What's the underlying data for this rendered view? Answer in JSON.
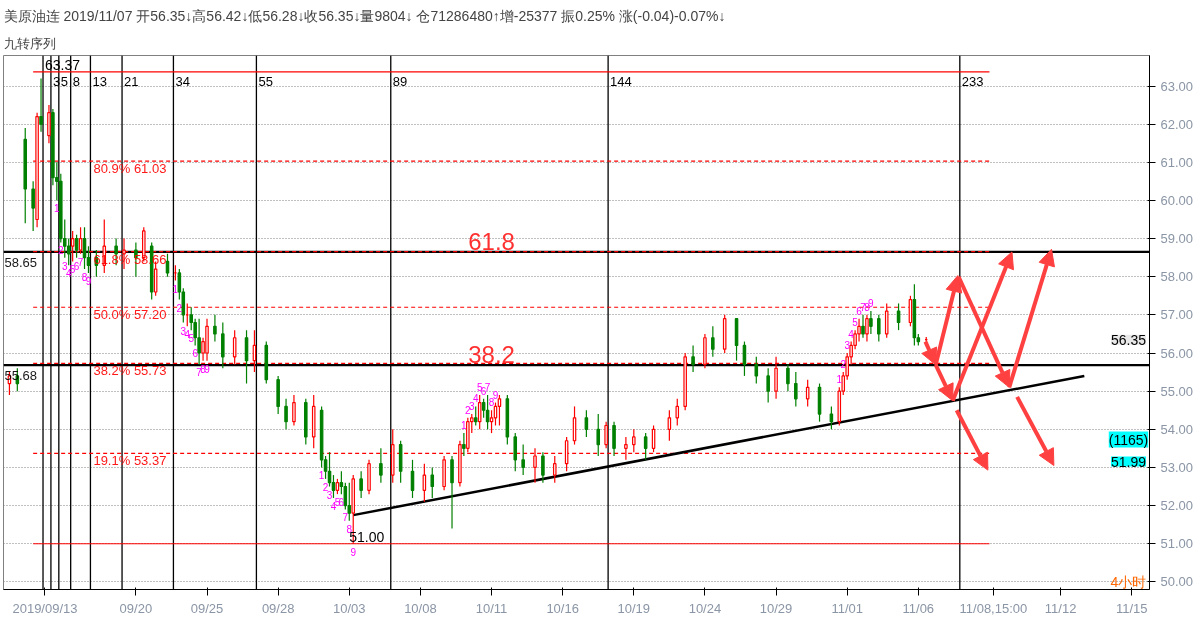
{
  "chart_data": {
    "type": "candlestick",
    "title": "美原油连 2019/11/07 开56.35↓高56.42↓低56.28↓收56.35↓量9804↓ 仓71286480↑增-25377 振0.25% 涨(-0.04)-0.07%↓",
    "subtitle": "九转序列",
    "categories": [
      null,
      null,
      null,
      null,
      null,
      null,
      null,
      null,
      null,
      null,
      "2019/09/13",
      null,
      null,
      null,
      null,
      null,
      null,
      null,
      null,
      null,
      null,
      null,
      null,
      null,
      null,
      null,
      null,
      null,
      null,
      null,
      null,
      null,
      null,
      "09/20",
      null,
      null,
      null,
      null,
      null,
      null,
      null,
      null,
      null,
      null,
      null,
      null,
      null,
      null,
      null,
      null,
      null,
      "09/25",
      null,
      null,
      null,
      null,
      null,
      null,
      null,
      null,
      null,
      null,
      null,
      null,
      null,
      null,
      null,
      null,
      null,
      "09/28",
      null,
      null,
      null,
      null,
      null,
      null,
      null,
      null,
      null,
      null,
      null,
      null,
      null,
      null,
      null,
      null,
      null,
      "10/03",
      null,
      null,
      null,
      null,
      null,
      null,
      null,
      null,
      null,
      null,
      null,
      null,
      null,
      null,
      null,
      null,
      null,
      "10/08",
      null,
      null,
      null,
      null,
      null,
      null,
      null,
      null,
      null,
      null,
      null,
      null,
      null,
      null,
      null,
      null,
      null,
      "10/11",
      null,
      null,
      null,
      null,
      null,
      null,
      null,
      null,
      null,
      null,
      null,
      null,
      null,
      null,
      null,
      null,
      null,
      "10/16",
      null,
      null,
      null,
      null,
      null,
      null,
      null,
      null,
      null,
      null,
      null,
      null,
      null,
      null,
      null,
      null,
      null,
      "10/19",
      null,
      null,
      null,
      null,
      null,
      null,
      null,
      null,
      null,
      null,
      null,
      null,
      null,
      null,
      null,
      null,
      null,
      "10/24",
      null,
      null,
      null,
      null,
      null,
      null,
      null,
      null,
      null,
      null,
      null,
      null,
      null,
      null,
      null,
      null,
      null,
      "10/29",
      null,
      null,
      null,
      null,
      null,
      null,
      null,
      null,
      null,
      null,
      null,
      null,
      null,
      null,
      null,
      null,
      null,
      "11/01",
      null,
      null,
      null,
      null,
      null,
      null,
      null,
      null,
      null,
      null,
      null,
      null,
      null,
      null,
      null,
      null,
      null,
      "11/06",
      null,
      null,
      null,
      null,
      null,
      null,
      null,
      null,
      null,
      null,
      null,
      null,
      null,
      null,
      null,
      null,
      null,
      null,
      "11/08,15:00",
      null,
      null,
      null,
      null,
      null,
      null,
      null,
      null,
      null,
      null,
      null,
      null,
      null,
      null,
      null,
      null,
      "11/12",
      null,
      null,
      null,
      null,
      null,
      null,
      null,
      null,
      null,
      null,
      null,
      null,
      null,
      null,
      null,
      null,
      null,
      "11/15",
      null,
      null,
      null,
      null
    ],
    "ohlc": [
      null,
      [
        55.2,
        55.5,
        54.9,
        55.4
      ],
      null,
      [
        55.4,
        55.6,
        55.0,
        55.2
      ],
      null,
      [
        61.6,
        61.9,
        59.4,
        60.3
      ],
      null,
      [
        60.3,
        60.5,
        59.2,
        59.8
      ],
      [
        59.5,
        62.3,
        59.3,
        62.2
      ],
      [
        62.2,
        63.2,
        61.8,
        62.0
      ],
      null,
      [
        61.7,
        62.5,
        61.5,
        62.3
      ],
      [
        62.3,
        62.4,
        60.4,
        60.6
      ],
      [
        60.6,
        61.0,
        60.0,
        60.5
      ],
      [
        60.5,
        60.7,
        58.9,
        59.0
      ],
      [
        59.0,
        59.5,
        58.5,
        58.8
      ],
      [
        58.8,
        59.0,
        58.3,
        58.6
      ],
      [
        58.8,
        59.2,
        58.4,
        59.0
      ],
      [
        59.0,
        59.1,
        58.5,
        58.7
      ],
      [
        58.7,
        59.3,
        58.6,
        59.0
      ],
      [
        59.0,
        59.3,
        58.2,
        58.5
      ],
      [
        58.5,
        58.8,
        58.1,
        58.3
      ],
      null,
      [
        58.5,
        58.7,
        58.0,
        58.3
      ],
      null,
      [
        58.3,
        59.5,
        58.1,
        58.8
      ],
      null,
      null,
      [
        58.8,
        59.0,
        58.3,
        58.6
      ],
      null,
      [
        58.6,
        59.0,
        58.2,
        58.7
      ],
      null,
      null,
      [
        58.7,
        58.9,
        58.0,
        58.5
      ],
      null,
      [
        58.5,
        59.3,
        58.4,
        59.2
      ],
      null,
      [
        58.8,
        58.9,
        57.4,
        57.6
      ],
      [
        57.6,
        58.4,
        57.5,
        58.2
      ],
      null,
      null,
      [
        58.4,
        58.6,
        58.0,
        58.1
      ],
      null,
      [
        58.1,
        58.3,
        57.9,
        58.1
      ],
      [
        58.1,
        58.2,
        57.4,
        57.6
      ],
      [
        57.6,
        57.7,
        56.8,
        57.0
      ],
      [
        57.0,
        57.3,
        56.7,
        57.0
      ],
      [
        57.0,
        57.2,
        56.6,
        56.8
      ],
      [
        56.8,
        56.9,
        56.2,
        56.4
      ],
      [
        56.4,
        56.9,
        55.7,
        56.0
      ],
      [
        56.0,
        56.4,
        55.8,
        56.3
      ],
      [
        56.0,
        56.9,
        55.8,
        56.7
      ],
      null,
      [
        56.7,
        57.0,
        56.3,
        56.5
      ],
      null,
      [
        56.5,
        56.8,
        55.6,
        55.9
      ],
      null,
      null,
      [
        55.9,
        56.6,
        55.7,
        56.4
      ],
      null,
      null,
      [
        56.4,
        56.6,
        55.2,
        55.8
      ],
      null,
      [
        55.8,
        56.6,
        55.5,
        56.2
      ],
      null,
      null,
      [
        56.2,
        56.3,
        55.2,
        55.3
      ],
      null,
      null,
      [
        55.3,
        55.4,
        54.4,
        54.6
      ],
      null,
      [
        54.6,
        54.8,
        54.0,
        54.2
      ],
      null,
      [
        54.2,
        54.9,
        54.1,
        54.7
      ],
      null,
      null,
      [
        54.7,
        54.8,
        53.6,
        53.8
      ],
      null,
      [
        53.8,
        54.9,
        53.5,
        54.6
      ],
      null,
      [
        54.5,
        54.6,
        53.0,
        53.2
      ],
      [
        53.2,
        53.3,
        52.7,
        52.9
      ],
      [
        52.9,
        53.4,
        52.5,
        52.6
      ],
      [
        52.6,
        52.8,
        52.2,
        52.4
      ],
      [
        52.4,
        52.7,
        52.3,
        52.6
      ],
      [
        52.6,
        52.9,
        52.3,
        52.5
      ],
      [
        52.5,
        52.6,
        51.9,
        52.0
      ],
      [
        52.0,
        52.6,
        51.6,
        51.8
      ],
      [
        51.8,
        52.8,
        51.0,
        52.7
      ],
      null,
      [
        52.7,
        52.9,
        52.2,
        52.4
      ],
      null,
      [
        52.4,
        53.2,
        52.3,
        53.1
      ],
      null,
      null,
      [
        53.1,
        53.5,
        52.6,
        52.8
      ],
      null,
      null,
      [
        52.8,
        54.0,
        52.6,
        53.6
      ],
      null,
      [
        53.6,
        53.7,
        52.6,
        52.9
      ],
      null,
      null,
      [
        52.9,
        53.2,
        52.2,
        52.4
      ],
      null,
      null,
      [
        52.4,
        53.1,
        52.1,
        52.8
      ],
      null,
      [
        52.8,
        53.0,
        52.2,
        52.5
      ],
      null,
      null,
      [
        52.5,
        53.3,
        52.4,
        53.2
      ],
      null,
      [
        53.2,
        53.3,
        51.4,
        52.6
      ],
      null,
      [
        52.6,
        53.7,
        52.5,
        53.6
      ],
      [
        53.6,
        53.9,
        53.3,
        53.5
      ],
      [
        53.5,
        54.3,
        53.4,
        54.2
      ],
      [
        54.2,
        54.4,
        53.9,
        54.3
      ],
      [
        54.3,
        54.6,
        54.1,
        54.2
      ],
      [
        54.2,
        54.9,
        54.0,
        54.7
      ],
      [
        54.7,
        54.8,
        54.3,
        54.5
      ],
      [
        54.5,
        54.9,
        54.0,
        54.2
      ],
      [
        54.2,
        54.5,
        53.9,
        54.3
      ],
      [
        54.3,
        54.7,
        54.1,
        54.6
      ],
      [
        54.6,
        54.9,
        54.1,
        54.8
      ],
      null,
      [
        54.8,
        54.9,
        53.6,
        53.8
      ],
      null,
      [
        53.8,
        53.9,
        52.9,
        53.2
      ],
      null,
      [
        53.2,
        53.6,
        52.8,
        53.0
      ],
      null,
      null,
      [
        53.0,
        53.5,
        52.6,
        53.3
      ],
      null,
      [
        53.3,
        53.4,
        52.6,
        52.8
      ],
      null,
      null,
      [
        52.8,
        53.3,
        52.6,
        53.1
      ],
      null,
      null,
      [
        53.1,
        53.8,
        52.9,
        53.7
      ],
      null,
      [
        53.7,
        54.6,
        53.6,
        54.3
      ],
      null,
      null,
      [
        54.3,
        54.5,
        53.8,
        54.0
      ],
      null,
      null,
      [
        54.0,
        54.4,
        53.3,
        53.6
      ],
      null,
      [
        53.6,
        54.2,
        53.5,
        54.1
      ],
      null,
      [
        54.1,
        54.2,
        53.3,
        53.5
      ],
      null,
      null,
      [
        53.5,
        53.8,
        53.2,
        53.6
      ],
      null,
      [
        53.6,
        54.0,
        53.4,
        53.8
      ],
      null,
      null,
      [
        53.8,
        53.9,
        53.2,
        53.5
      ],
      null,
      [
        53.5,
        54.1,
        53.4,
        54.0
      ],
      null,
      null,
      null,
      [
        54.0,
        54.5,
        53.7,
        54.3
      ],
      null,
      [
        54.3,
        54.8,
        54.1,
        54.6
      ],
      null,
      [
        54.6,
        56.0,
        54.5,
        55.9
      ],
      null,
      [
        55.9,
        56.2,
        55.5,
        55.7
      ],
      null,
      null,
      [
        55.7,
        56.5,
        55.6,
        56.4
      ],
      null,
      [
        56.4,
        56.7,
        55.9,
        56.1
      ],
      null,
      null,
      [
        56.1,
        57.0,
        56.0,
        56.9
      ],
      null,
      null,
      [
        56.9,
        56.9,
        55.8,
        56.2
      ],
      null,
      [
        56.2,
        56.3,
        55.4,
        55.7
      ],
      null,
      null,
      [
        55.7,
        55.9,
        55.2,
        55.4
      ],
      null,
      null,
      [
        55.4,
        55.6,
        54.7,
        55.0
      ],
      null,
      [
        55.0,
        55.9,
        54.8,
        55.6
      ],
      null,
      null,
      [
        55.6,
        55.7,
        55.0,
        55.2
      ],
      null,
      [
        55.2,
        55.5,
        54.6,
        54.8
      ],
      null,
      null,
      [
        54.8,
        55.3,
        54.6,
        55.1
      ],
      null,
      null,
      [
        55.1,
        55.2,
        54.2,
        54.4
      ],
      null,
      null,
      [
        54.4,
        54.6,
        54.0,
        54.2
      ],
      null,
      [
        54.2,
        55.1,
        54.1,
        55.0
      ],
      [
        55.0,
        55.5,
        54.9,
        55.4
      ],
      [
        55.4,
        56.0,
        55.3,
        55.9
      ],
      [
        55.9,
        56.3,
        55.7,
        56.2
      ],
      [
        56.2,
        56.6,
        56.1,
        56.5
      ],
      [
        56.5,
        56.9,
        56.3,
        56.7
      ],
      [
        56.7,
        57.0,
        56.4,
        56.5
      ],
      [
        56.5,
        57.0,
        56.3,
        56.9
      ],
      [
        56.9,
        57.1,
        56.5,
        56.7
      ],
      null,
      [
        56.9,
        57.0,
        56.3,
        56.5
      ],
      null,
      [
        56.5,
        57.3,
        56.4,
        57.1
      ],
      null,
      null,
      [
        57.1,
        57.3,
        56.6,
        56.8
      ],
      null,
      null,
      [
        56.8,
        57.5,
        56.7,
        57.4
      ],
      [
        57.4,
        57.8,
        56.2,
        56.4
      ],
      [
        56.4,
        56.5,
        56.2,
        56.3
      ],
      null,
      [
        56.35,
        56.42,
        56.28,
        56.35
      ],
      null,
      null,
      null,
      null,
      null,
      null,
      null,
      null,
      null,
      null,
      null,
      null,
      null,
      null,
      null,
      null,
      null,
      null,
      null,
      null,
      null,
      null,
      null,
      null,
      null,
      null,
      null,
      null,
      null,
      null,
      null,
      null,
      null,
      null,
      null,
      null,
      null,
      null,
      null,
      null,
      null,
      null,
      null,
      null,
      null,
      null,
      null,
      null,
      null,
      null,
      null,
      null,
      null,
      null,
      null,
      null
    ],
    "value_labels": [
      null,
      null,
      null,
      null,
      null,
      null,
      null,
      null,
      null,
      null,
      null,
      null,
      null,
      "1",
      "2",
      "3",
      "4",
      "5",
      "6",
      "7",
      "8",
      "9",
      null,
      null,
      null,
      null,
      null,
      null,
      null,
      null,
      null,
      null,
      null,
      null,
      null,
      null,
      null,
      null,
      null,
      null,
      null,
      null,
      null,
      "1",
      "2",
      "3",
      "4",
      "5",
      "6",
      "7",
      "8",
      "9",
      null,
      null,
      null,
      null,
      null,
      null,
      null,
      null,
      null,
      null,
      null,
      null,
      null,
      null,
      null,
      null,
      null,
      null,
      null,
      null,
      null,
      null,
      null,
      null,
      null,
      null,
      null,
      null,
      "1",
      "2",
      "3",
      "4",
      "5",
      "6",
      "7",
      "8",
      "9",
      null,
      null,
      null,
      null,
      null,
      null,
      null,
      null,
      null,
      null,
      null,
      null,
      null,
      null,
      null,
      null,
      null,
      null,
      null,
      null,
      null,
      null,
      null,
      null,
      null,
      null,
      null,
      "1",
      "2",
      "3",
      "4",
      "5",
      "6",
      "7",
      "8",
      "9",
      null,
      null,
      null,
      null,
      null,
      null,
      null,
      null,
      null,
      null,
      null,
      null,
      null,
      null,
      null,
      null,
      null,
      null,
      null,
      null,
      null,
      null,
      null,
      null,
      null,
      null,
      null,
      null,
      null,
      null,
      null,
      null,
      null,
      null,
      null,
      null,
      null,
      null,
      null,
      null,
      null,
      null,
      null,
      null,
      null,
      null,
      null,
      null,
      null,
      null,
      null,
      null,
      null,
      null,
      null,
      null,
      null,
      null,
      null,
      null,
      null,
      null,
      null,
      null,
      null,
      null,
      null,
      null,
      null,
      null,
      null,
      null,
      null,
      null,
      null,
      null,
      null,
      null,
      null,
      null,
      null,
      null,
      null,
      null,
      null,
      null,
      "1",
      "2",
      "3",
      "4",
      "5",
      "6",
      "7",
      "8",
      "9",
      null,
      null,
      null,
      null,
      null,
      null,
      null,
      null,
      null,
      null,
      null,
      null,
      null,
      null,
      null,
      null,
      null,
      null,
      null,
      null,
      null,
      null,
      null,
      null,
      null,
      null,
      null,
      null,
      null,
      null,
      null,
      null,
      null,
      null,
      null,
      null,
      null,
      null,
      null,
      null,
      null,
      null,
      null,
      null,
      null,
      null,
      null,
      null,
      null,
      null,
      null,
      null,
      null,
      null,
      null,
      null,
      null,
      null,
      null,
      null,
      null,
      null,
      null,
      null,
      null,
      null,
      null,
      null,
      null,
      null
    ],
    "series": [
      {
        "type": "line",
        "color": "#000000",
        "values": [
          null,
          null,
          null,
          null,
          null,
          null,
          null,
          null,
          null,
          null,
          null,
          null,
          null,
          null,
          null,
          null,
          null,
          null,
          null,
          null,
          null,
          null,
          null,
          null,
          null,
          null,
          null,
          null,
          null,
          null,
          null,
          null,
          null,
          null,
          null,
          null,
          null,
          null,
          null,
          null,
          null,
          null,
          null,
          null,
          null,
          null,
          null,
          null,
          null,
          null,
          null,
          null,
          null,
          null,
          null,
          null,
          null,
          null,
          null,
          null,
          null,
          null,
          null,
          null,
          null,
          null,
          null,
          null,
          null,
          null,
          null,
          null,
          null,
          null,
          null,
          null,
          null,
          null,
          null,
          null,
          null,
          null,
          null,
          null,
          null,
          null,
          null,
          null,
          51.75,
          null,
          null,
          null,
          null,
          null,
          null,
          null,
          null,
          null,
          null,
          null,
          null,
          null,
          null,
          null,
          null,
          null,
          null,
          null,
          null,
          null,
          null,
          null,
          null,
          null,
          null,
          null,
          null,
          null,
          null,
          null,
          null,
          null,
          null,
          null,
          null,
          null,
          null,
          null,
          null,
          null,
          null,
          null,
          null,
          null,
          null,
          null,
          null,
          null,
          null,
          null,
          null,
          null,
          null,
          null,
          null,
          null,
          null,
          null,
          null,
          null,
          null,
          null,
          null,
          null,
          null,
          null,
          null,
          null,
          null,
          null,
          null,
          null,
          null,
          null,
          null,
          null,
          null,
          null,
          null,
          null,
          null,
          null,
          null,
          null,
          null,
          null,
          null,
          null,
          null,
          null,
          null,
          null,
          null,
          null,
          null,
          null,
          null,
          null,
          null,
          null,
          null,
          null,
          null,
          null,
          null,
          null,
          null,
          null,
          null,
          null,
          null,
          null,
          null,
          null,
          null,
          null,
          null,
          null,
          null,
          null,
          null,
          null,
          null,
          null,
          null,
          null,
          null,
          null,
          null,
          null,
          null,
          null,
          null,
          null,
          null,
          null,
          null,
          null,
          null,
          null,
          null,
          null,
          null,
          null,
          null,
          null,
          null,
          null,
          null,
          null,
          null,
          null,
          null,
          null,
          null,
          null,
          null,
          null,
          null,
          null,
          null,
          null,
          null,
          null,
          null,
          null,
          null,
          null,
          null,
          null,
          null,
          null,
          null,
          null,
          null,
          null,
          null,
          null,
          null,
          null,
          null,
          null,
          null,
          55.4,
          null,
          null,
          null,
          null,
          null,
          null,
          null,
          null,
          null,
          null,
          null,
          null,
          null,
          null,
          null,
          null
        ]
      }
    ],
    "ylim": [
      49.8,
      63.8
    ],
    "yticks": [
      {
        "value": 50,
        "label": "50.00"
      },
      {
        "value": 51,
        "label": "51.00"
      },
      {
        "value": 52,
        "label": "52.00"
      },
      {
        "value": 53,
        "label": "53.00"
      },
      {
        "value": 54,
        "label": "54.00"
      },
      {
        "value": 55,
        "label": "55.00"
      },
      {
        "value": 56,
        "label": "56.00"
      },
      {
        "value": 57,
        "label": "57.00"
      },
      {
        "value": 58,
        "label": "58.00"
      },
      {
        "value": 59,
        "label": "59.00"
      },
      {
        "value": 60,
        "label": "60.00"
      },
      {
        "value": 61,
        "label": "61.00"
      },
      {
        "value": 62,
        "label": "62.00"
      },
      {
        "value": 63,
        "label": "63.00"
      }
    ],
    "grid": "y",
    "ref_lines": [
      {
        "axis": "y",
        "value": 63.37,
        "label": null,
        "color": "#ff0000",
        "line_style": "solid"
      },
      {
        "axis": "y",
        "value": 61.03,
        "label": "80.9% 61.03",
        "color": "#ff0000",
        "line_style": "dashed"
      },
      {
        "axis": "y",
        "value": 58.66,
        "label": "61.8% 58.66",
        "color": "#ff0000",
        "line_style": "dashed"
      },
      {
        "axis": "y",
        "value": 57.2,
        "label": "50.0% 57.20",
        "color": "#ff0000",
        "line_style": "dashed"
      },
      {
        "axis": "y",
        "value": 55.73,
        "label": "38.2% 55.73",
        "color": "#ff0000",
        "line_style": "dashed"
      },
      {
        "axis": "y",
        "value": 53.37,
        "label": "19.1% 53.37",
        "color": "#ff0000",
        "line_style": "dashed"
      },
      {
        "axis": "y",
        "value": 51.0,
        "label": null,
        "color": "#ff0000",
        "line_style": "solid"
      },
      {
        "axis": "y",
        "value": 58.65,
        "label": "58.65",
        "color": "#000000",
        "line_style": "solid"
      },
      {
        "axis": "y",
        "value": 55.68,
        "label": "55.68",
        "color": "#000000",
        "line_style": "solid"
      }
    ],
    "annotations": [
      {
        "text": "63.37",
        "x": "2019/09/13",
        "y": 63.37
      },
      {
        "text": "61.8",
        "x": "10/11",
        "y": 58.65
      },
      {
        "text": "38.2",
        "x": "10/11",
        "y": 55.68
      },
      {
        "text": "51.00",
        "x": "10/03",
        "y": 51.0
      },
      "3",
      "5",
      "8",
      "13",
      "21",
      "34",
      "55",
      "89",
      "144",
      "233",
      "56.35",
      "(1165)",
      "51.99",
      "4小时"
    ]
  }
}
